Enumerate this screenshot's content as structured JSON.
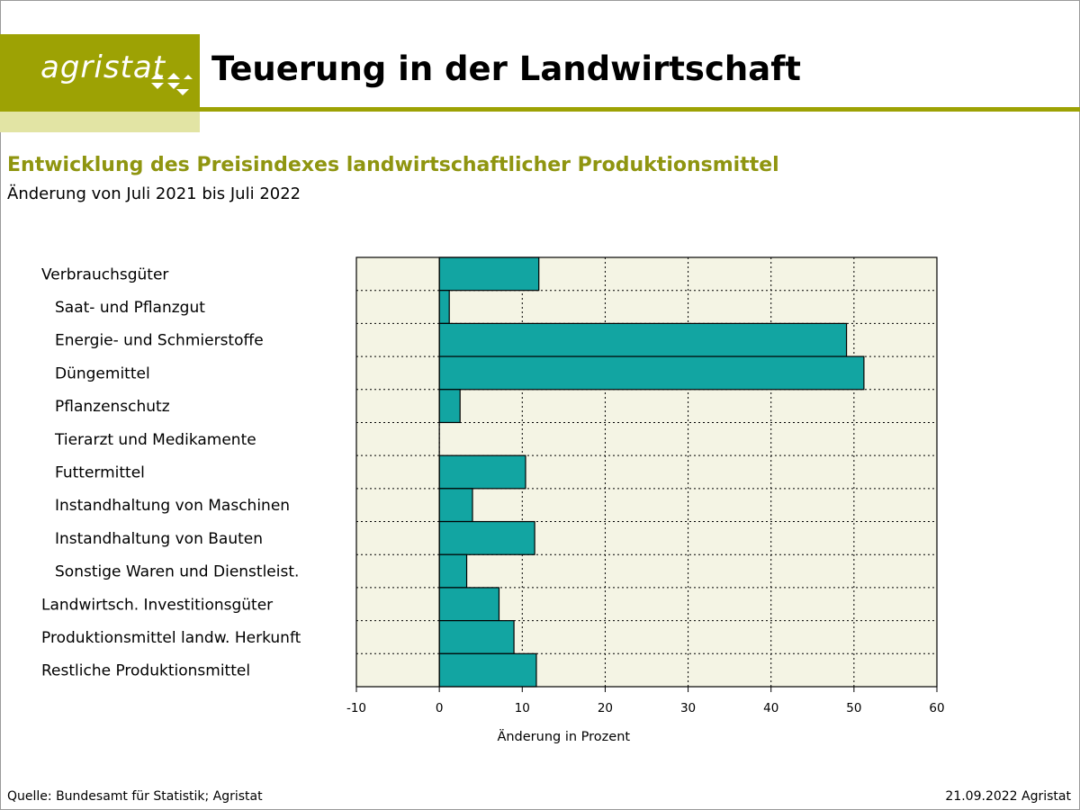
{
  "header": {
    "logo_text": "agristat",
    "title": "Teuerung in der Landwirtschaft",
    "brand_color": "#9da204"
  },
  "chart_heading": {
    "title": "Entwicklung des Preisindexes landwirtschaftlicher Produktionsmittel",
    "subtitle": "Änderung von Juli 2021 bis Juli 2022"
  },
  "chart_data": {
    "type": "bar",
    "orientation": "horizontal",
    "categories": [
      "Verbrauchsgüter",
      "Saat- und Pflanzgut",
      "Energie- und Schmierstoffe",
      "Düngemittel",
      "Pflanzenschutz",
      "Tierarzt und Medikamente",
      "Futtermittel",
      "Instandhaltung von Maschinen",
      "Instandhaltung von Bauten",
      "Sonstige Waren und Dienstleist.",
      "Landwirtsch. Investitionsgüter",
      "Produktionsmittel landw. Herkunft",
      "Restliche Produktionsmittel"
    ],
    "indent": [
      false,
      true,
      true,
      true,
      true,
      true,
      true,
      true,
      true,
      true,
      false,
      false,
      false
    ],
    "values": [
      12.0,
      1.2,
      49.1,
      51.2,
      2.5,
      0.0,
      10.4,
      4.0,
      11.5,
      3.3,
      7.2,
      9.0,
      11.7
    ],
    "xlabel": "Änderung in Prozent",
    "xlim": [
      -10,
      60
    ],
    "xticks": [
      -10,
      0,
      10,
      20,
      30,
      40,
      50,
      60
    ],
    "xtick_labels": [
      "-10",
      "0",
      "10",
      "20",
      "30",
      "40",
      "50",
      "60"
    ],
    "grid": true,
    "bar_color": "#12a5a2",
    "plot_background": "#f4f4e4"
  },
  "footer": {
    "source": "Quelle: Bundesamt für Statistik; Agristat",
    "date": "21.09.2022 Agristat"
  }
}
